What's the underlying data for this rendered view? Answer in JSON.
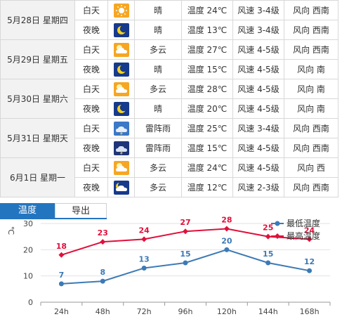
{
  "forecast": [
    {
      "date": "5月28日 星期四",
      "day": {
        "period": "白天",
        "icon": "sunny-icon",
        "weather": "晴",
        "temp": "温度 24℃",
        "wind": "风速 3-4级",
        "dir": "风向 西南"
      },
      "night": {
        "period": "夜晚",
        "icon": "moon-icon",
        "weather": "晴",
        "temp": "温度 13℃",
        "wind": "风速 3-4级",
        "dir": "风向 西南"
      }
    },
    {
      "date": "5月29日 星期五",
      "day": {
        "period": "白天",
        "icon": "partly-cloudy-icon",
        "weather": "多云",
        "temp": "温度 27℃",
        "wind": "风速 4-5级",
        "dir": "风向 西南"
      },
      "night": {
        "period": "夜晚",
        "icon": "moon-icon",
        "weather": "晴",
        "temp": "温度 15℃",
        "wind": "风速 4-5级",
        "dir": "风向 南"
      }
    },
    {
      "date": "5月30日 星期六",
      "day": {
        "period": "白天",
        "icon": "partly-cloudy-icon",
        "weather": "多云",
        "temp": "温度 28℃",
        "wind": "风速 4-5级",
        "dir": "风向 南"
      },
      "night": {
        "period": "夜晚",
        "icon": "moon-icon",
        "weather": "晴",
        "temp": "温度 20℃",
        "wind": "风速 4-5级",
        "dir": "风向 南"
      }
    },
    {
      "date": "5月31日 星期天",
      "day": {
        "period": "白天",
        "icon": "thunderstorm-icon",
        "weather": "雷阵雨",
        "temp": "温度 25℃",
        "wind": "风速 3-4级",
        "dir": "风向 西南"
      },
      "night": {
        "period": "夜晚",
        "icon": "thunderstorm-night-icon",
        "weather": "雷阵雨",
        "temp": "温度 15℃",
        "wind": "风速 4-5级",
        "dir": "风向 西南"
      }
    },
    {
      "date": "6月1日 星期一",
      "day": {
        "period": "白天",
        "icon": "partly-cloudy-icon",
        "weather": "多云",
        "temp": "温度 24℃",
        "wind": "风速 4-5级",
        "dir": "风向 西"
      },
      "night": {
        "period": "夜晚",
        "icon": "cloudy-night-icon",
        "weather": "多云",
        "temp": "温度 12℃",
        "wind": "风速 2-3级",
        "dir": "风向 西南"
      }
    }
  ],
  "tabs": [
    {
      "label": "温度",
      "active": true
    },
    {
      "label": "导出",
      "active": false
    }
  ],
  "chart_data": {
    "type": "line",
    "ylabel": "℃",
    "categories": [
      "24h",
      "48h",
      "72h",
      "96h",
      "120h",
      "144h",
      "168h"
    ],
    "yticks": [
      0,
      10,
      20,
      30
    ],
    "ylim": [
      0,
      30
    ],
    "grid": true,
    "legend": "top-right",
    "series": [
      {
        "name": "最低温度",
        "color": "#3c7ab6",
        "values": [
          7,
          8,
          13,
          15,
          20,
          15,
          12
        ]
      },
      {
        "name": "最高温度",
        "color": "#e0103c",
        "values": [
          18,
          23,
          24,
          27,
          28,
          25,
          24
        ]
      }
    ]
  }
}
